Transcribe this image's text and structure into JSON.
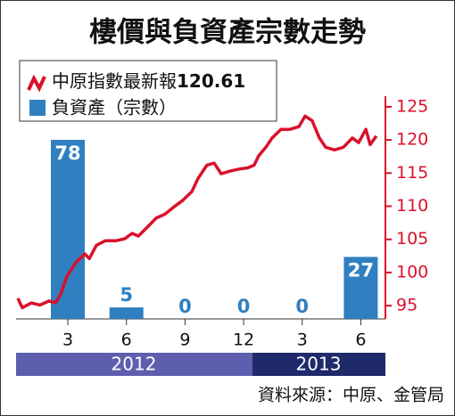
{
  "chart_data": {
    "type": "combo",
    "title": "樓價與負資產宗數走勢",
    "source": "資料來源：中原、金管局",
    "latest_value": 120.61,
    "xlim": [
      0.35,
      19.26
    ],
    "xticks": [
      3,
      6,
      9,
      12,
      {
        "value": 15,
        "label": "3"
      },
      {
        "value": 18,
        "label": "6"
      }
    ],
    "years": [
      "2012",
      "2013"
    ],
    "ylim": [
      0,
      97
    ],
    "y2lim": [
      93,
      126.6
    ],
    "y2ticks": [
      95,
      100,
      105,
      110,
      115,
      120,
      125
    ],
    "series": [
      {
        "name": "中原指數最新報",
        "type": "line",
        "axis": "y2",
        "color": "#d9112b",
        "x": [
          0.44,
          0.67,
          1.13,
          1.58,
          2.04,
          2.36,
          2.63,
          2.95,
          3.41,
          3.87,
          4.1,
          4.46,
          4.92,
          5.47,
          5.92,
          6.29,
          6.61,
          7.06,
          7.52,
          7.98,
          8.43,
          8.89,
          9.35,
          9.67,
          10.12,
          10.49,
          10.85,
          11.31,
          11.77,
          12.22,
          12.54,
          12.77,
          13.14,
          13.46,
          13.91,
          14.37,
          14.83,
          15.15,
          15.51,
          15.88,
          16.2,
          16.66,
          17.11,
          17.57,
          17.89,
          18.26,
          18.48,
          18.8
        ],
        "values": [
          96.1,
          94.7,
          95.4,
          95.1,
          95.7,
          95.4,
          96.7,
          99.4,
          101.5,
          102.8,
          102.1,
          104.1,
          104.8,
          104.8,
          105.1,
          105.9,
          105.5,
          106.8,
          108.2,
          108.8,
          109.9,
          110.9,
          112.2,
          114.2,
          116.2,
          116.5,
          114.9,
          115.3,
          115.6,
          115.8,
          116.2,
          117.6,
          118.9,
          120.3,
          121.6,
          121.6,
          122.0,
          123.6,
          122.9,
          120.3,
          118.9,
          118.5,
          118.9,
          120.3,
          119.6,
          121.6,
          119.3,
          120.61
        ]
      },
      {
        "name": "負資產（宗數）",
        "type": "bar",
        "axis": "y",
        "color": "#2f7fc1",
        "x": [
          3,
          6,
          9,
          12,
          15,
          18
        ],
        "values": [
          78,
          5,
          0,
          0,
          0,
          27
        ]
      }
    ]
  }
}
